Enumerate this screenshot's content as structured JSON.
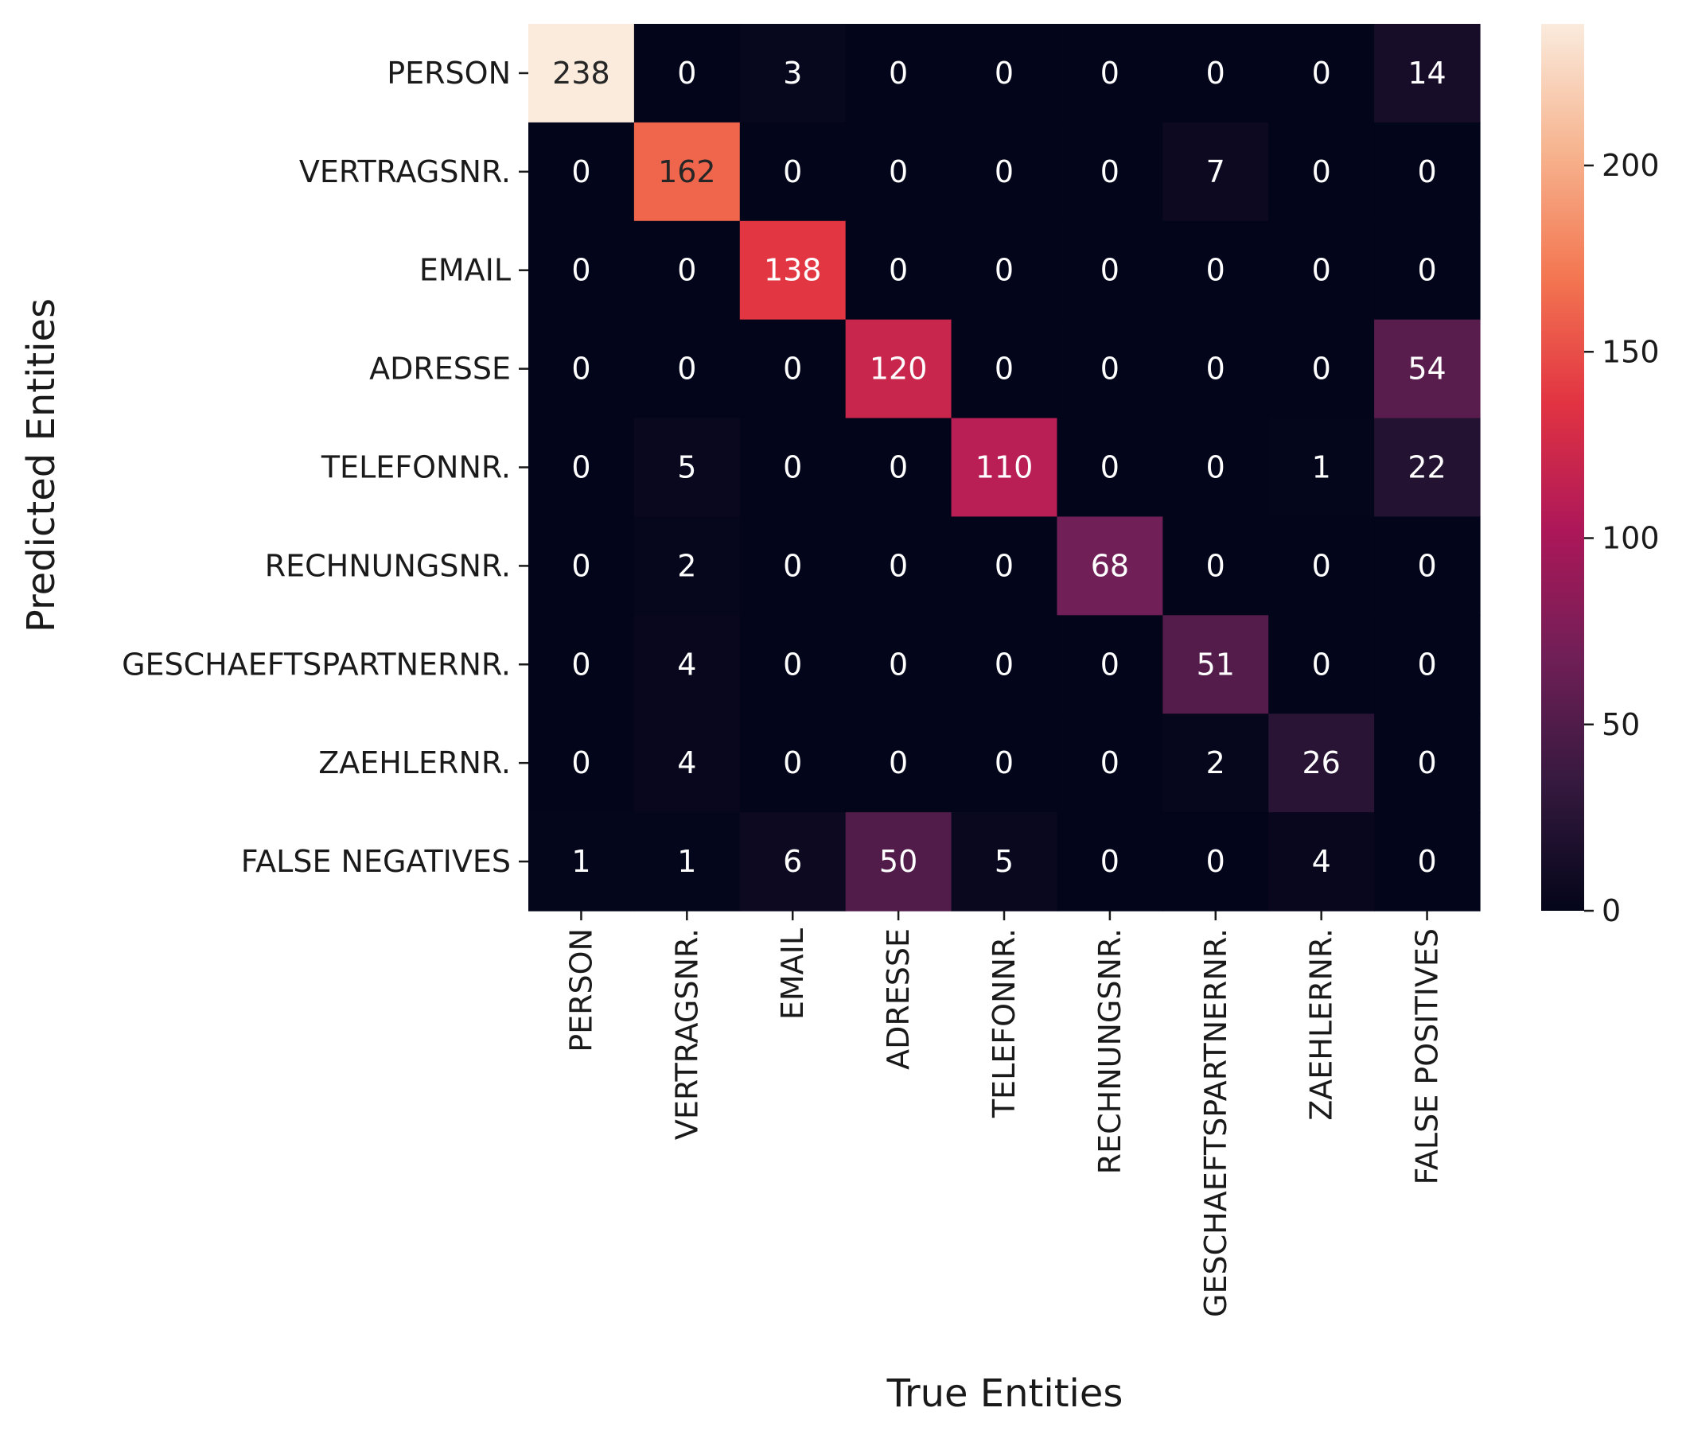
{
  "chart_data": {
    "type": "heatmap",
    "xlabel": "True Entities",
    "ylabel": "Predicted Entities",
    "x_categories": [
      "PERSON",
      "VERTRAGSNR.",
      "EMAIL",
      "ADRESSE",
      "TELEFONNR.",
      "RECHNUNGSNR.",
      "GESCHAEFTSPARTNERNR.",
      "ZAEHLERNR.",
      "FALSE POSITIVES"
    ],
    "y_categories": [
      "PERSON",
      "VERTRAGSNR.",
      "EMAIL",
      "ADRESSE",
      "TELEFONNR.",
      "RECHNUNGSNR.",
      "GESCHAEFTSPARTNERNR.",
      "ZAEHLERNR.",
      "FALSE NEGATIVES"
    ],
    "values": [
      [
        238,
        0,
        3,
        0,
        0,
        0,
        0,
        0,
        14
      ],
      [
        0,
        162,
        0,
        0,
        0,
        0,
        7,
        0,
        0
      ],
      [
        0,
        0,
        138,
        0,
        0,
        0,
        0,
        0,
        0
      ],
      [
        0,
        0,
        0,
        120,
        0,
        0,
        0,
        0,
        54
      ],
      [
        0,
        5,
        0,
        0,
        110,
        0,
        0,
        1,
        22
      ],
      [
        0,
        2,
        0,
        0,
        0,
        68,
        0,
        0,
        0
      ],
      [
        0,
        4,
        0,
        0,
        0,
        0,
        51,
        0,
        0
      ],
      [
        0,
        4,
        0,
        0,
        0,
        0,
        2,
        26,
        0
      ],
      [
        1,
        1,
        6,
        50,
        5,
        0,
        0,
        4,
        0
      ]
    ],
    "colorbar": {
      "range": [
        0,
        238
      ],
      "ticks": [
        0,
        50,
        100,
        150,
        200
      ],
      "colormap": "rocket",
      "stops": [
        "#03051a",
        "#35193e",
        "#701f57",
        "#ad1759",
        "#e13342",
        "#f37651",
        "#f6b48f",
        "#faebdd"
      ]
    },
    "grid": false,
    "legend": "colorbar-right"
  }
}
